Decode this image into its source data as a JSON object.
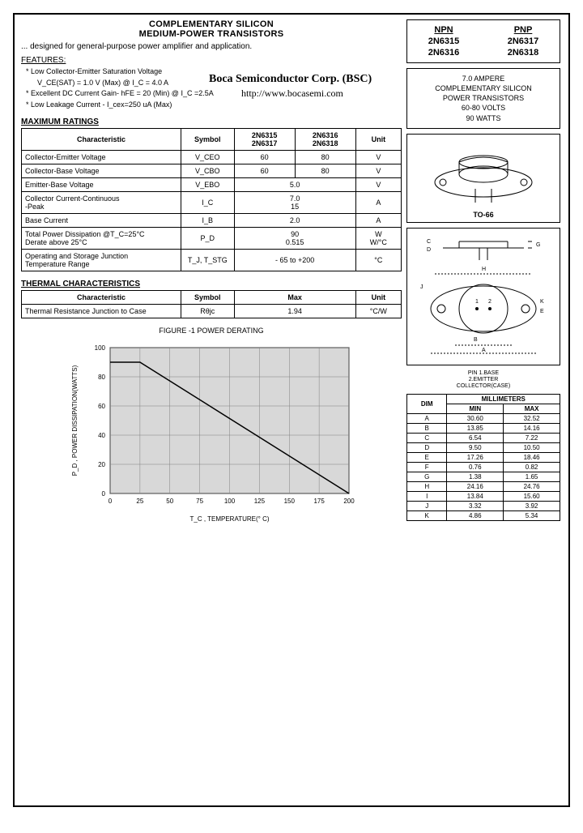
{
  "header": {
    "title1": "COMPLEMENTARY SILICON",
    "title2": "MEDIUM-POWER TRANSISTORS",
    "subtitle": "... designed for general-purpose power amplifier and application.",
    "company": "Boca Semiconductor Corp. (BSC)",
    "url": "http://www.bocasemi.com"
  },
  "features": {
    "label": "FEATURES:",
    "f1": "* Low Collector-Emitter Saturation Voltage",
    "f1b": "   V_CE(SAT) = 1.0 V (Max) @ I_C = 4.0 A",
    "f2": "* Excellent DC Current Gain- hFE = 20 (Min) @ I_C =2.5A",
    "f3": "* Low Leakage Current - I_cex=250 uA (Max)"
  },
  "parts": {
    "npn_hdr": "NPN",
    "pnp_hdr": "PNP",
    "p1": "2N6315",
    "p2": "2N6317",
    "p3": "2N6316",
    "p4": "2N6318"
  },
  "specs_box": {
    "l1": "7.0 AMPERE",
    "l2": "COMPLEMENTARY SILICON",
    "l3": "POWER TRANSISTORS",
    "l4": "60-80  VOLTS",
    "l5": "90  WATTS"
  },
  "max_ratings": {
    "title": "MAXIMUM RATINGS",
    "headers": {
      "char": "Characteristic",
      "sym": "Symbol",
      "c1": "2N6315\n2N6317",
      "c2": "2N6316\n2N6318",
      "unit": "Unit"
    },
    "rows": [
      {
        "char": "Collector-Emitter Voltage",
        "sym": "V_CEO",
        "v1": "60",
        "v2": "80",
        "unit": "V"
      },
      {
        "char": "Collector-Base Voltage",
        "sym": "V_CBO",
        "v1": "60",
        "v2": "80",
        "unit": "V"
      },
      {
        "char": "Emitter-Base Voltage",
        "sym": "V_EBO",
        "v12": "5.0",
        "unit": "V"
      },
      {
        "char": "Collector Current-Continuous\n                                 -Peak",
        "sym": "I_C",
        "v12": "7.0\n15",
        "unit": "A"
      },
      {
        "char": "Base Current",
        "sym": "I_B",
        "v12": "2.0",
        "unit": "A"
      },
      {
        "char": "Total Power Dissipation @T_C=25°C\n   Derate above 25°C",
        "sym": "P_D",
        "v12": "90\n0.515",
        "unit": "W\nW/°C"
      },
      {
        "char": "Operating and Storage Junction\n   Temperature Range",
        "sym": "T_J, T_STG",
        "v12": "- 65 to +200",
        "unit": "°C"
      }
    ]
  },
  "thermal": {
    "title": "THERMAL CHARACTERISTICS",
    "headers": {
      "char": "Characteristic",
      "sym": "Symbol",
      "max": "Max",
      "unit": "Unit"
    },
    "row": {
      "char": "Thermal Resistance Junction to Case",
      "sym": "Rθjc",
      "max": "1.94",
      "unit": "°C/W"
    }
  },
  "chart": {
    "title": "FIGURE -1 POWER DERATING",
    "xlabel": "T_C , TEMPERATURE(° C)",
    "ylabel": "P_D , POWER DISSIPATION(WATTS)",
    "xlim": [
      0,
      200
    ],
    "ylim": [
      0,
      100
    ],
    "xtick_step": 25,
    "ytick_step": 20,
    "grid_color": "#808080",
    "line_color": "#000000",
    "background": "#d8d8d8",
    "points": [
      [
        0,
        90
      ],
      [
        25,
        90
      ],
      [
        200,
        0
      ]
    ]
  },
  "package": {
    "label": "TO-66"
  },
  "pin_note": {
    "l1": "PIN 1.BASE",
    "l2": "2.EMITTER",
    "l3": "COLLECTOR(CASE)"
  },
  "dimensions": {
    "headers": {
      "dim": "DIM",
      "mm": "MILLIMETERS",
      "min": "MIN",
      "max": "MAX"
    },
    "rows": [
      {
        "d": "A",
        "min": "30.60",
        "max": "32.52"
      },
      {
        "d": "B",
        "min": "13.85",
        "max": "14.16"
      },
      {
        "d": "C",
        "min": "6.54",
        "max": "7.22"
      },
      {
        "d": "D",
        "min": "9.50",
        "max": "10.50"
      },
      {
        "d": "E",
        "min": "17.26",
        "max": "18.46"
      },
      {
        "d": "F",
        "min": "0.76",
        "max": "0.82"
      },
      {
        "d": "G",
        "min": "1.38",
        "max": "1.65"
      },
      {
        "d": "H",
        "min": "24.16",
        "max": "24.76"
      },
      {
        "d": "I",
        "min": "13.84",
        "max": "15.60"
      },
      {
        "d": "J",
        "min": "3.32",
        "max": "3.92"
      },
      {
        "d": "K",
        "min": "4.86",
        "max": "5.34"
      }
    ]
  }
}
